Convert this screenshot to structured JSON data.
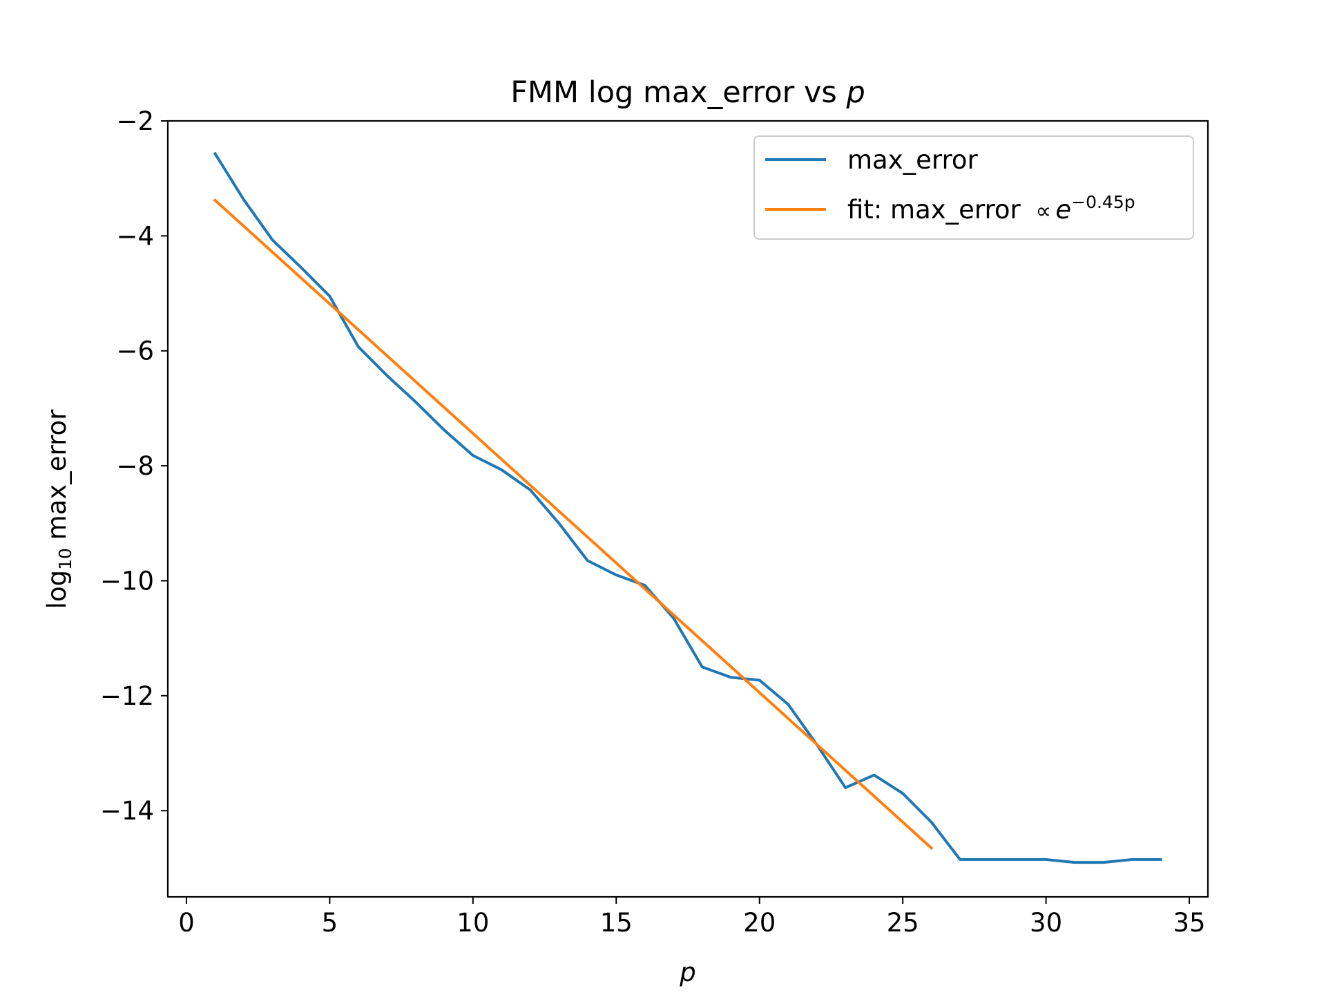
{
  "chart_data": {
    "type": "line",
    "title_prefix": "FMM log max_error vs ",
    "title_var": "p",
    "xlabel": "p",
    "ylabel_prefix": "log",
    "ylabel_sub": "10",
    "ylabel_suffix": " max_error",
    "xlim": [
      -0.65,
      35.65
    ],
    "ylim": [
      -15.5,
      -2.0
    ],
    "xticks": [
      0,
      5,
      10,
      15,
      20,
      25,
      30,
      35
    ],
    "xtick_labels": [
      "0",
      "5",
      "10",
      "15",
      "20",
      "25",
      "30",
      "35"
    ],
    "yticks": [
      -2,
      -4,
      -6,
      -8,
      -10,
      -12,
      -14
    ],
    "ytick_labels": [
      "−2",
      "−4",
      "−6",
      "−8",
      "−10",
      "−12",
      "−14"
    ],
    "grid": false,
    "legend_position": "top-right",
    "series": [
      {
        "name": "max_error",
        "color": "#1f77b4",
        "x": [
          1,
          2,
          3,
          4,
          5,
          6,
          7,
          8,
          9,
          10,
          11,
          12,
          13,
          14,
          15,
          16,
          17,
          18,
          19,
          20,
          21,
          22,
          23,
          24,
          25,
          26,
          27,
          28,
          29,
          30,
          31,
          32,
          33,
          34
        ],
        "y": [
          -2.57,
          -3.37,
          -4.07,
          -4.55,
          -5.05,
          -5.93,
          -6.43,
          -6.89,
          -7.38,
          -7.82,
          -8.07,
          -8.42,
          -9.0,
          -9.65,
          -9.9,
          -10.08,
          -10.65,
          -11.5,
          -11.68,
          -11.73,
          -12.15,
          -12.85,
          -13.6,
          -13.38,
          -13.7,
          -14.2,
          -14.85,
          -14.85,
          -14.85,
          -14.85,
          -14.9,
          -14.9,
          -14.85,
          -14.85
        ]
      },
      {
        "name": "fit: max_error ",
        "legend_prop": "∝",
        "legend_base": "e",
        "legend_exp": "−0.45p",
        "color": "#ff7f0e",
        "x": [
          1,
          26
        ],
        "y": [
          -3.38,
          -14.65
        ]
      }
    ]
  }
}
